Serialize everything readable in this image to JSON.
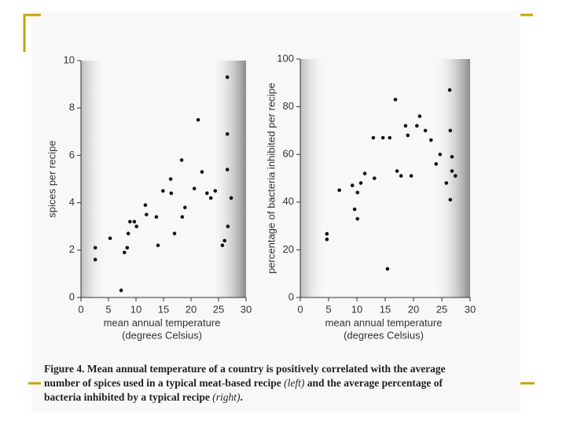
{
  "chart_data": [
    {
      "type": "scatter",
      "ylabel": "spices per recipe",
      "xlabel": [
        "mean annual temperature",
        "(degrees Celsius)"
      ],
      "x": [
        2.6,
        2.6,
        5.3,
        7.3,
        7.9,
        8.4,
        8.6,
        8.9,
        9.7,
        10.1,
        11.7,
        11.9,
        13.7,
        14.0,
        14.9,
        16.3,
        16.4,
        17.0,
        18.3,
        18.4,
        18.9,
        20.6,
        21.3,
        22.0,
        22.9,
        23.6,
        24.4,
        25.7,
        26.1,
        26.6,
        26.6,
        26.6,
        26.7,
        27.3
      ],
      "values": [
        2.1,
        1.6,
        2.5,
        0.3,
        1.9,
        2.1,
        2.7,
        3.2,
        3.2,
        3.0,
        3.9,
        3.5,
        3.4,
        2.2,
        4.5,
        5.0,
        4.4,
        2.7,
        5.8,
        3.4,
        3.8,
        4.6,
        7.5,
        5.3,
        4.4,
        4.2,
        4.5,
        2.2,
        2.4,
        9.3,
        6.9,
        5.4,
        3.0,
        4.2
      ],
      "color": "#111111",
      "xlim": [
        0,
        30
      ],
      "xticks": [
        0,
        5,
        10,
        15,
        20,
        25,
        30
      ],
      "ylim": [
        0,
        10
      ],
      "yticks": [
        0,
        2,
        4,
        6,
        8,
        10
      ]
    },
    {
      "type": "scatter",
      "ylabel": "percentage of bacteria inhibited per recipe",
      "xlabel": [
        "mean annual temperature",
        "(degrees Celsius)"
      ],
      "x": [
        4.7,
        4.7,
        6.9,
        9.2,
        9.6,
        10.1,
        10.1,
        10.7,
        11.4,
        13.1,
        12.9,
        14.6,
        15.4,
        15.8,
        16.8,
        17.1,
        17.8,
        18.6,
        19.0,
        19.6,
        20.6,
        21.1,
        22.1,
        23.1,
        24.0,
        24.7,
        25.8,
        26.4,
        26.5,
        26.5,
        26.8,
        26.8,
        27.4
      ],
      "values": [
        26.7,
        24.4,
        45,
        47,
        37,
        44,
        33,
        48,
        52,
        50,
        67,
        67,
        12,
        67,
        83,
        53,
        51,
        72,
        68,
        51,
        72,
        76,
        70,
        66,
        56,
        60,
        48,
        87,
        70,
        41,
        59,
        53,
        51
      ],
      "color": "#111111",
      "xlim": [
        0,
        30
      ],
      "xticks": [
        0,
        5,
        10,
        15,
        20,
        25,
        30
      ],
      "ylim": [
        0,
        100
      ],
      "yticks": [
        0,
        20,
        40,
        60,
        80,
        100
      ]
    }
  ],
  "caption": [
    "Figure 4.",
    "Mean annual temperature of a country is positively correlated with the average number of spices used in a typical meat-based recipe",
    "(left)",
    "and the average percentage of bacteria inhibited by a typical recipe",
    "(right)",
    "."
  ]
}
